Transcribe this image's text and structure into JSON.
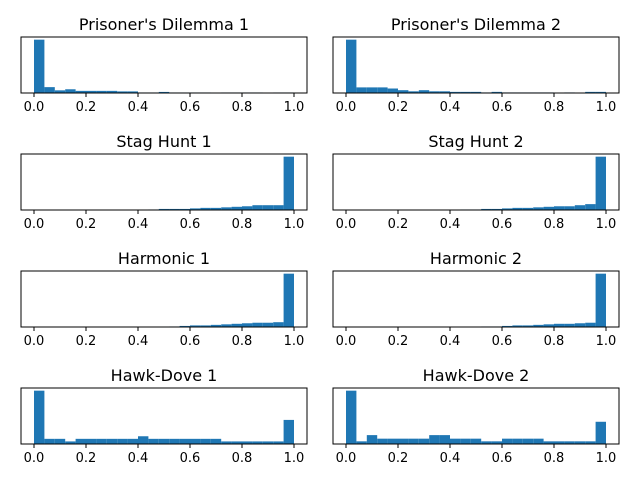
{
  "chart_data": [
    {
      "type": "bar",
      "title": "Prisoner's Dilemma 1",
      "xlim": [
        -0.05,
        1.05
      ],
      "xticks": [
        "0.0",
        "0.2",
        "0.4",
        "0.6",
        "0.8",
        "1.0"
      ],
      "bin_width": 0.04,
      "bin_start": 0.0,
      "values": [
        1.0,
        0.11,
        0.05,
        0.07,
        0.04,
        0.04,
        0.04,
        0.04,
        0.03,
        0.03,
        0.01,
        0.01,
        0.02,
        0.01,
        0.01,
        0.01,
        0.01,
        0.0,
        0.01,
        0.01,
        0.01,
        0.01,
        0.0,
        0.01,
        0.01
      ],
      "color": "#1f77b4"
    },
    {
      "type": "bar",
      "title": "Prisoner's Dilemma 2",
      "xlim": [
        -0.05,
        1.05
      ],
      "xticks": [
        "0.0",
        "0.2",
        "0.4",
        "0.6",
        "0.8",
        "1.0"
      ],
      "bin_width": 0.04,
      "bin_start": 0.0,
      "values": [
        0.95,
        0.1,
        0.1,
        0.1,
        0.08,
        0.05,
        0.03,
        0.05,
        0.03,
        0.03,
        0.02,
        0.02,
        0.02,
        0.01,
        0.02,
        0.01,
        0.01,
        0.01,
        0.01,
        0.01,
        0.0,
        0.01,
        0.0,
        0.02,
        0.02
      ],
      "color": "#1f77b4"
    },
    {
      "type": "bar",
      "title": "Stag Hunt 1",
      "xlim": [
        -0.05,
        1.05
      ],
      "xticks": [
        "0.0",
        "0.2",
        "0.4",
        "0.6",
        "0.8",
        "1.0"
      ],
      "bin_width": 0.04,
      "bin_start": 0.0,
      "values": [
        0,
        0,
        0,
        0,
        0,
        0,
        0,
        0,
        0,
        0,
        0,
        0.01,
        0.02,
        0.02,
        0.02,
        0.03,
        0.04,
        0.04,
        0.05,
        0.06,
        0.07,
        0.09,
        0.09,
        0.09,
        1.0
      ],
      "color": "#1f77b4"
    },
    {
      "type": "bar",
      "title": "Stag Hunt 2",
      "xlim": [
        -0.05,
        1.05
      ],
      "xticks": [
        "0.0",
        "0.2",
        "0.4",
        "0.6",
        "0.8",
        "1.0"
      ],
      "bin_width": 0.04,
      "bin_start": 0.0,
      "values": [
        0,
        0,
        0,
        0,
        0,
        0,
        0,
        0,
        0,
        0,
        0,
        0.01,
        0.01,
        0.02,
        0.02,
        0.03,
        0.04,
        0.04,
        0.05,
        0.06,
        0.07,
        0.07,
        0.09,
        0.11,
        1.0
      ],
      "color": "#1f77b4"
    },
    {
      "type": "bar",
      "title": "Harmonic 1",
      "xlim": [
        -0.05,
        1.05
      ],
      "xticks": [
        "0.0",
        "0.2",
        "0.4",
        "0.6",
        "0.8",
        "1.0"
      ],
      "bin_width": 0.04,
      "bin_start": 0.0,
      "values": [
        0,
        0,
        0,
        0,
        0,
        0,
        0,
        0,
        0,
        0,
        0,
        0,
        0,
        0.01,
        0.02,
        0.03,
        0.03,
        0.04,
        0.05,
        0.06,
        0.07,
        0.08,
        0.08,
        0.09,
        1.0
      ],
      "color": "#1f77b4"
    },
    {
      "type": "bar",
      "title": "Harmonic 2",
      "xlim": [
        -0.05,
        1.05
      ],
      "xticks": [
        "0.0",
        "0.2",
        "0.4",
        "0.6",
        "0.8",
        "1.0"
      ],
      "bin_width": 0.04,
      "bin_start": 0.0,
      "values": [
        0,
        0,
        0,
        0,
        0,
        0,
        0,
        0,
        0,
        0,
        0,
        0,
        0,
        0.01,
        0.01,
        0.02,
        0.03,
        0.03,
        0.04,
        0.05,
        0.06,
        0.06,
        0.07,
        0.08,
        1.0
      ],
      "color": "#1f77b4"
    },
    {
      "type": "bar",
      "title": "Hawk-Dove 1",
      "xlim": [
        -0.05,
        1.05
      ],
      "xticks": [
        "0.0",
        "0.2",
        "0.4",
        "0.6",
        "0.8",
        "1.0"
      ],
      "bin_width": 0.04,
      "bin_start": 0.0,
      "values": [
        0.62,
        0.06,
        0.06,
        0.03,
        0.06,
        0.06,
        0.06,
        0.06,
        0.06,
        0.06,
        0.09,
        0.06,
        0.06,
        0.06,
        0.06,
        0.06,
        0.06,
        0.06,
        0.03,
        0.03,
        0.03,
        0.03,
        0.03,
        0.03,
        0.28
      ],
      "color": "#1f77b4"
    },
    {
      "type": "bar",
      "title": "Hawk-Dove 2",
      "xlim": [
        -0.05,
        1.05
      ],
      "xticks": [
        "0.0",
        "0.2",
        "0.4",
        "0.6",
        "0.8",
        "1.0"
      ],
      "bin_width": 0.04,
      "bin_start": 0.0,
      "values": [
        0.6,
        0.03,
        0.1,
        0.06,
        0.06,
        0.06,
        0.06,
        0.06,
        0.1,
        0.1,
        0.06,
        0.06,
        0.06,
        0.03,
        0.03,
        0.06,
        0.06,
        0.06,
        0.06,
        0.03,
        0.03,
        0.03,
        0.03,
        0.03,
        0.25
      ],
      "color": "#1f77b4"
    }
  ]
}
